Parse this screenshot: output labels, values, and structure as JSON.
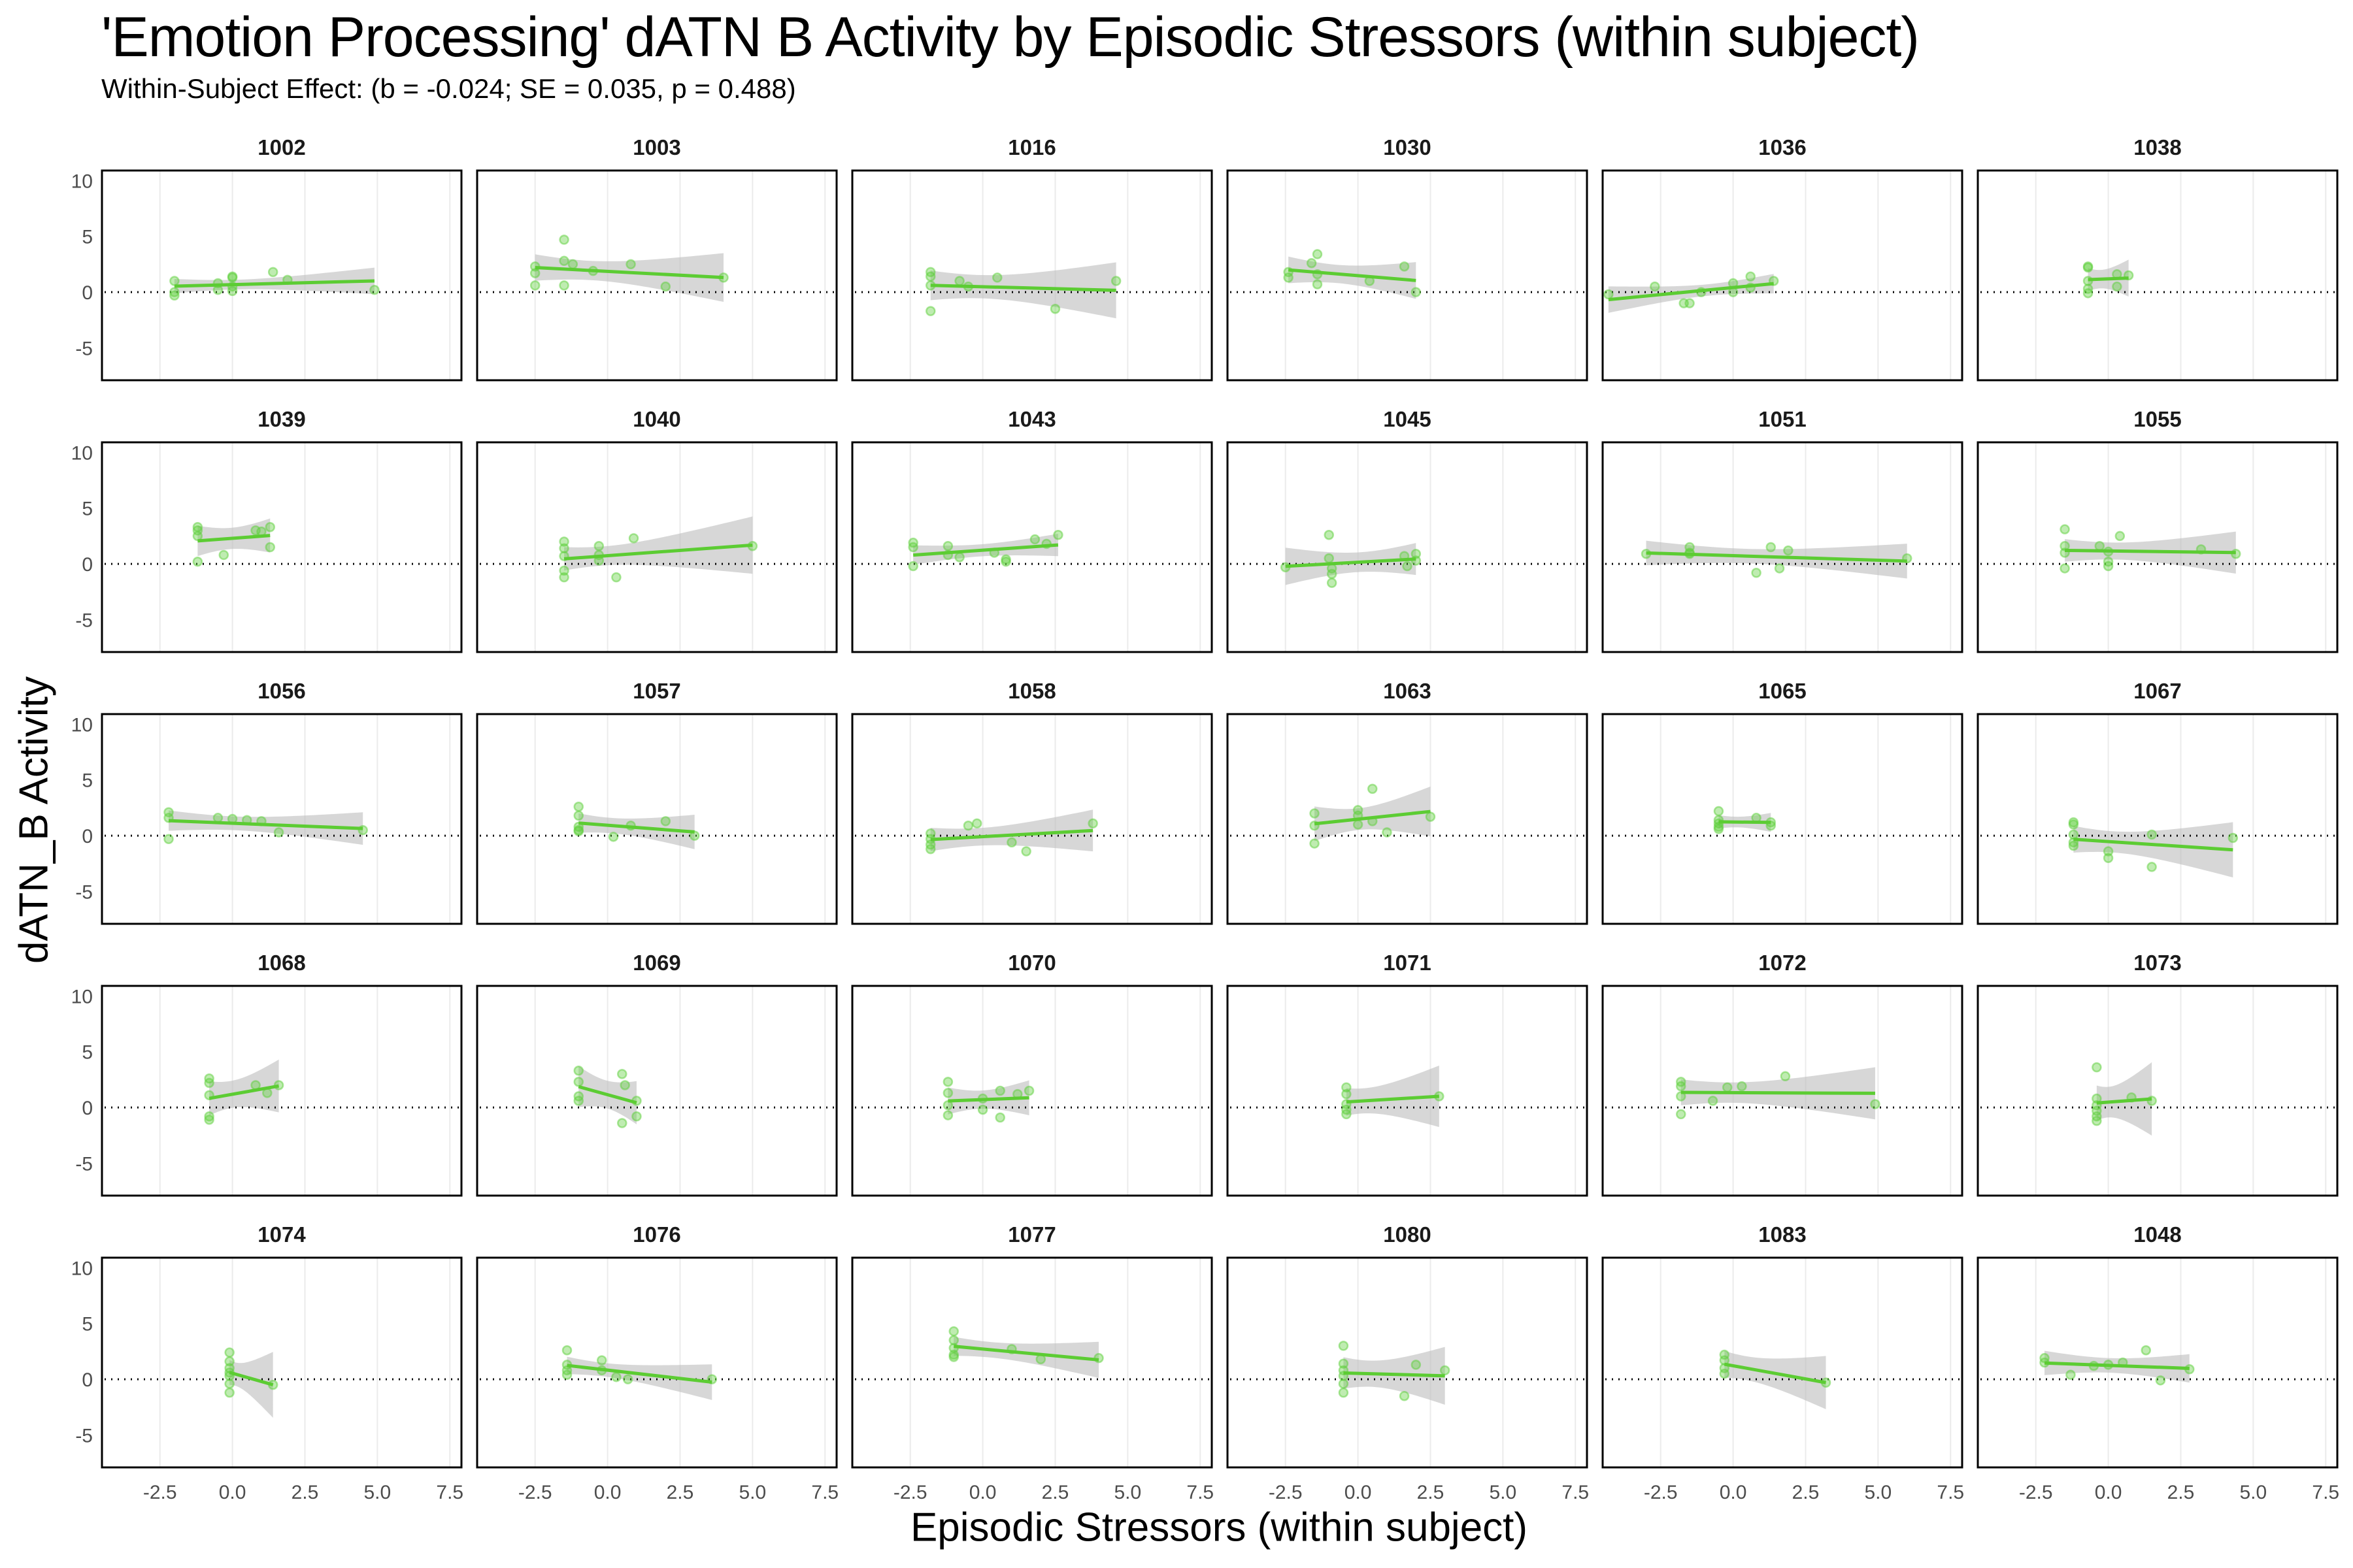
{
  "chart_data": {
    "type": "scatter",
    "title": "'Emotion Processing' dATN B Activity by Episodic Stressors (within subject)",
    "subtitle": "Within-Subject Effect: (b = -0.024; SE = 0.035, p = 0.488)",
    "xlabel": "Episodic Stressors (within subject)",
    "ylabel": "dATN_B Activity",
    "xlim": [
      -4.5,
      7.9
    ],
    "ylim": [
      -7.9,
      10.9
    ],
    "xticks": [
      -2.5,
      0.0,
      2.5,
      5.0,
      7.5
    ],
    "xtick_labels": [
      "-2.5",
      "0.0",
      "2.5",
      "5.0",
      "7.5"
    ],
    "yticks": [
      -5,
      0,
      5,
      10
    ],
    "ytick_labels": [
      "-5",
      "0",
      "5",
      "10"
    ],
    "grid": "vertical-major",
    "reference_line_y": 0,
    "layout": "facet-wrap 5 rows x 6 columns",
    "colors": {
      "points": "#5ecf3c",
      "fit_line": "#5ccc33",
      "ci_band": "#bdbdbd",
      "zero_line": "#000000"
    },
    "panels": [
      {
        "id": "1002",
        "points": [
          [
            -2.0,
            1.0
          ],
          [
            -2.0,
            0.0
          ],
          [
            -2.0,
            -0.3
          ],
          [
            -0.5,
            0.8
          ],
          [
            -0.5,
            0.2
          ],
          [
            0.0,
            1.3
          ],
          [
            0.0,
            1.4
          ],
          [
            0.0,
            0.5
          ],
          [
            0.0,
            0.1
          ],
          [
            1.4,
            1.8
          ],
          [
            1.9,
            1.1
          ],
          [
            4.9,
            0.2
          ]
        ]
      },
      {
        "id": "1003",
        "points": [
          [
            -2.5,
            2.3
          ],
          [
            -2.5,
            1.7
          ],
          [
            -2.5,
            0.6
          ],
          [
            -1.5,
            4.7
          ],
          [
            -1.5,
            2.8
          ],
          [
            -1.5,
            0.6
          ],
          [
            -1.2,
            2.5
          ],
          [
            -0.5,
            1.9
          ],
          [
            0.8,
            2.5
          ],
          [
            2.0,
            0.5
          ],
          [
            4.0,
            1.3
          ]
        ]
      },
      {
        "id": "1016",
        "points": [
          [
            -1.8,
            1.8
          ],
          [
            -1.8,
            1.4
          ],
          [
            -1.8,
            0.6
          ],
          [
            -1.8,
            -1.7
          ],
          [
            -0.8,
            1.0
          ],
          [
            -0.5,
            0.5
          ],
          [
            0.5,
            1.3
          ],
          [
            2.5,
            -1.5
          ],
          [
            4.6,
            1.0
          ]
        ]
      },
      {
        "id": "1030",
        "points": [
          [
            -2.4,
            1.8
          ],
          [
            -2.4,
            1.3
          ],
          [
            -1.6,
            2.6
          ],
          [
            -1.4,
            3.4
          ],
          [
            -1.4,
            1.6
          ],
          [
            -1.4,
            0.7
          ],
          [
            0.4,
            1.0
          ],
          [
            1.6,
            2.3
          ],
          [
            2.0,
            0.0
          ]
        ]
      },
      {
        "id": "1036",
        "points": [
          [
            -4.3,
            -0.2
          ],
          [
            -2.7,
            0.5
          ],
          [
            -1.7,
            -1.0
          ],
          [
            -1.5,
            -1.0
          ],
          [
            -1.1,
            0.0
          ],
          [
            0.0,
            0.0
          ],
          [
            0.0,
            0.8
          ],
          [
            0.6,
            1.4
          ],
          [
            0.6,
            0.4
          ],
          [
            1.4,
            1.0
          ]
        ]
      },
      {
        "id": "1038",
        "points": [
          [
            -0.7,
            2.3
          ],
          [
            -0.7,
            2.2
          ],
          [
            -0.7,
            1.0
          ],
          [
            -0.7,
            0.3
          ],
          [
            -0.7,
            -0.1
          ],
          [
            0.3,
            1.6
          ],
          [
            0.3,
            0.5
          ],
          [
            0.7,
            1.5
          ]
        ]
      },
      {
        "id": "1039",
        "points": [
          [
            -1.2,
            3.3
          ],
          [
            -1.2,
            3.0
          ],
          [
            -1.2,
            2.5
          ],
          [
            -1.2,
            0.2
          ],
          [
            -0.3,
            0.8
          ],
          [
            0.8,
            3.0
          ],
          [
            1.0,
            2.9
          ],
          [
            1.3,
            1.5
          ],
          [
            1.3,
            3.3
          ]
        ]
      },
      {
        "id": "1040",
        "points": [
          [
            -1.5,
            2.0
          ],
          [
            -1.5,
            1.4
          ],
          [
            -1.5,
            0.7
          ],
          [
            -1.5,
            -0.6
          ],
          [
            -1.5,
            -1.2
          ],
          [
            -0.3,
            1.6
          ],
          [
            -0.3,
            0.8
          ],
          [
            -0.3,
            0.3
          ],
          [
            0.3,
            -1.2
          ],
          [
            0.9,
            2.3
          ],
          [
            5.0,
            1.6
          ]
        ]
      },
      {
        "id": "1043",
        "points": [
          [
            -2.4,
            1.9
          ],
          [
            -2.4,
            1.5
          ],
          [
            -2.4,
            -0.2
          ],
          [
            -1.2,
            1.6
          ],
          [
            -1.2,
            0.8
          ],
          [
            -0.8,
            0.6
          ],
          [
            0.4,
            1.0
          ],
          [
            0.8,
            0.2
          ],
          [
            0.8,
            0.4
          ],
          [
            1.8,
            2.2
          ],
          [
            2.2,
            1.8
          ],
          [
            2.6,
            2.6
          ]
        ]
      },
      {
        "id": "1045",
        "points": [
          [
            -2.5,
            -0.3
          ],
          [
            -1.0,
            2.6
          ],
          [
            -1.0,
            0.5
          ],
          [
            -0.9,
            -0.4
          ],
          [
            -0.9,
            -1.7
          ],
          [
            -0.9,
            -0.9
          ],
          [
            1.6,
            0.7
          ],
          [
            1.7,
            -0.2
          ],
          [
            2.0,
            0.3
          ],
          [
            2.0,
            0.9
          ]
        ]
      },
      {
        "id": "1051",
        "points": [
          [
            -3.0,
            0.9
          ],
          [
            -1.5,
            1.5
          ],
          [
            -1.5,
            1.0
          ],
          [
            -1.5,
            0.9
          ],
          [
            0.8,
            -0.8
          ],
          [
            1.3,
            1.5
          ],
          [
            1.6,
            -0.4
          ],
          [
            1.9,
            1.2
          ],
          [
            6.0,
            0.5
          ]
        ]
      },
      {
        "id": "1055",
        "points": [
          [
            -1.5,
            3.1
          ],
          [
            -1.5,
            1.6
          ],
          [
            -1.5,
            1.0
          ],
          [
            -1.5,
            -0.4
          ],
          [
            -0.3,
            1.6
          ],
          [
            0.0,
            0.2
          ],
          [
            0.0,
            1.1
          ],
          [
            0.0,
            -0.2
          ],
          [
            0.4,
            2.5
          ],
          [
            3.2,
            1.3
          ],
          [
            4.4,
            0.9
          ]
        ]
      },
      {
        "id": "1056",
        "points": [
          [
            -2.2,
            2.1
          ],
          [
            -2.2,
            1.6
          ],
          [
            -2.2,
            -0.3
          ],
          [
            -0.5,
            1.6
          ],
          [
            0.0,
            1.5
          ],
          [
            0.5,
            1.4
          ],
          [
            1.0,
            1.3
          ],
          [
            1.6,
            0.3
          ],
          [
            4.5,
            0.5
          ]
        ]
      },
      {
        "id": "1057",
        "points": [
          [
            -1.0,
            2.6
          ],
          [
            -1.0,
            1.8
          ],
          [
            -1.0,
            0.8
          ],
          [
            -1.0,
            0.5
          ],
          [
            -1.0,
            0.4
          ],
          [
            0.2,
            -0.1
          ],
          [
            0.8,
            0.9
          ],
          [
            2.0,
            1.3
          ],
          [
            3.0,
            0.0
          ]
        ]
      },
      {
        "id": "1058",
        "points": [
          [
            -1.8,
            0.2
          ],
          [
            -1.8,
            -0.3
          ],
          [
            -1.8,
            -0.8
          ],
          [
            -1.8,
            -1.2
          ],
          [
            -0.5,
            0.9
          ],
          [
            -0.2,
            1.1
          ],
          [
            1.0,
            -0.6
          ],
          [
            1.5,
            -1.4
          ],
          [
            3.8,
            1.1
          ]
        ]
      },
      {
        "id": "1063",
        "points": [
          [
            -1.5,
            2.0
          ],
          [
            -1.5,
            0.9
          ],
          [
            -1.5,
            -0.7
          ],
          [
            0.0,
            2.3
          ],
          [
            0.0,
            1.8
          ],
          [
            0.0,
            1.0
          ],
          [
            0.5,
            4.2
          ],
          [
            0.5,
            1.3
          ],
          [
            1.0,
            0.3
          ],
          [
            2.5,
            1.7
          ]
        ]
      },
      {
        "id": "1065",
        "points": [
          [
            -0.5,
            2.2
          ],
          [
            -0.5,
            1.4
          ],
          [
            -0.5,
            1.1
          ],
          [
            -0.5,
            0.8
          ],
          [
            -0.5,
            0.6
          ],
          [
            0.8,
            1.6
          ],
          [
            1.3,
            0.9
          ],
          [
            1.3,
            1.2
          ]
        ]
      },
      {
        "id": "1067",
        "points": [
          [
            -1.2,
            1.2
          ],
          [
            -1.2,
            1.0
          ],
          [
            -1.2,
            0.1
          ],
          [
            -1.2,
            -0.6
          ],
          [
            -1.2,
            -0.9
          ],
          [
            0.0,
            -1.4
          ],
          [
            0.0,
            -2.0
          ],
          [
            1.5,
            0.1
          ],
          [
            1.5,
            -2.8
          ],
          [
            4.3,
            -0.2
          ]
        ]
      },
      {
        "id": "1068",
        "points": [
          [
            -0.8,
            2.6
          ],
          [
            -0.8,
            2.2
          ],
          [
            -0.8,
            1.1
          ],
          [
            -0.8,
            -0.8
          ],
          [
            -0.8,
            -1.1
          ],
          [
            0.8,
            2.0
          ],
          [
            1.2,
            1.3
          ],
          [
            1.6,
            2.0
          ]
        ]
      },
      {
        "id": "1069",
        "points": [
          [
            -1.0,
            3.3
          ],
          [
            -1.0,
            2.3
          ],
          [
            -1.0,
            1.0
          ],
          [
            -1.0,
            0.6
          ],
          [
            0.5,
            3.0
          ],
          [
            0.5,
            -1.4
          ],
          [
            0.6,
            2.0
          ],
          [
            1.0,
            -0.8
          ],
          [
            1.0,
            0.6
          ]
        ]
      },
      {
        "id": "1070",
        "points": [
          [
            -1.2,
            2.3
          ],
          [
            -1.2,
            1.3
          ],
          [
            -1.2,
            0.2
          ],
          [
            -1.2,
            -0.7
          ],
          [
            0.0,
            0.8
          ],
          [
            0.0,
            -0.2
          ],
          [
            0.6,
            1.5
          ],
          [
            0.6,
            -0.9
          ],
          [
            1.2,
            1.2
          ],
          [
            1.6,
            1.5
          ]
        ]
      },
      {
        "id": "1071",
        "points": [
          [
            -0.4,
            1.8
          ],
          [
            -0.4,
            1.2
          ],
          [
            -0.4,
            0.3
          ],
          [
            -0.4,
            -0.2
          ],
          [
            -0.4,
            -0.6
          ],
          [
            2.8,
            1.0
          ]
        ]
      },
      {
        "id": "1072",
        "points": [
          [
            -1.8,
            2.3
          ],
          [
            -1.8,
            1.9
          ],
          [
            -1.8,
            1.0
          ],
          [
            -1.8,
            -0.6
          ],
          [
            -0.7,
            0.6
          ],
          [
            -0.2,
            1.8
          ],
          [
            0.3,
            1.9
          ],
          [
            1.8,
            2.8
          ],
          [
            4.9,
            0.3
          ]
        ]
      },
      {
        "id": "1073",
        "points": [
          [
            -0.4,
            3.6
          ],
          [
            -0.4,
            0.8
          ],
          [
            -0.4,
            0.2
          ],
          [
            -0.4,
            -0.3
          ],
          [
            -0.4,
            -0.8
          ],
          [
            -0.4,
            -1.2
          ],
          [
            0.8,
            0.9
          ],
          [
            1.5,
            0.6
          ]
        ]
      },
      {
        "id": "1074",
        "points": [
          [
            -0.1,
            2.4
          ],
          [
            -0.1,
            1.6
          ],
          [
            -0.1,
            1.0
          ],
          [
            -0.1,
            0.6
          ],
          [
            -0.1,
            0.3
          ],
          [
            -0.1,
            -0.4
          ],
          [
            -0.1,
            -1.2
          ],
          [
            1.4,
            -0.5
          ]
        ]
      },
      {
        "id": "1076",
        "points": [
          [
            -1.4,
            2.6
          ],
          [
            -1.4,
            1.3
          ],
          [
            -1.4,
            0.8
          ],
          [
            -1.4,
            0.4
          ],
          [
            -0.2,
            1.7
          ],
          [
            -0.2,
            0.8
          ],
          [
            0.3,
            0.2
          ],
          [
            0.7,
            0.0
          ],
          [
            3.6,
            0.0
          ]
        ]
      },
      {
        "id": "1077",
        "points": [
          [
            -1.0,
            4.3
          ],
          [
            -1.0,
            3.5
          ],
          [
            -1.0,
            2.8
          ],
          [
            -1.0,
            2.2
          ],
          [
            -1.0,
            2.0
          ],
          [
            1.0,
            2.7
          ],
          [
            2.0,
            1.8
          ],
          [
            4.0,
            1.9
          ]
        ]
      },
      {
        "id": "1080",
        "points": [
          [
            -0.5,
            3.0
          ],
          [
            -0.5,
            1.4
          ],
          [
            -0.5,
            0.8
          ],
          [
            -0.5,
            0.3
          ],
          [
            -0.5,
            -0.4
          ],
          [
            -0.5,
            -1.2
          ],
          [
            1.6,
            -1.5
          ],
          [
            2.0,
            1.3
          ],
          [
            3.0,
            0.8
          ]
        ]
      },
      {
        "id": "1083",
        "points": [
          [
            -0.3,
            2.2
          ],
          [
            -0.3,
            1.7
          ],
          [
            -0.3,
            1.0
          ],
          [
            -0.3,
            0.5
          ],
          [
            3.2,
            -0.3
          ]
        ]
      },
      {
        "id": "1048",
        "points": [
          [
            -2.2,
            1.9
          ],
          [
            -2.2,
            1.5
          ],
          [
            -1.3,
            0.4
          ],
          [
            -0.5,
            1.2
          ],
          [
            0.0,
            1.3
          ],
          [
            0.5,
            1.5
          ],
          [
            1.3,
            2.6
          ],
          [
            1.8,
            -0.1
          ],
          [
            2.8,
            0.9
          ]
        ]
      }
    ]
  }
}
